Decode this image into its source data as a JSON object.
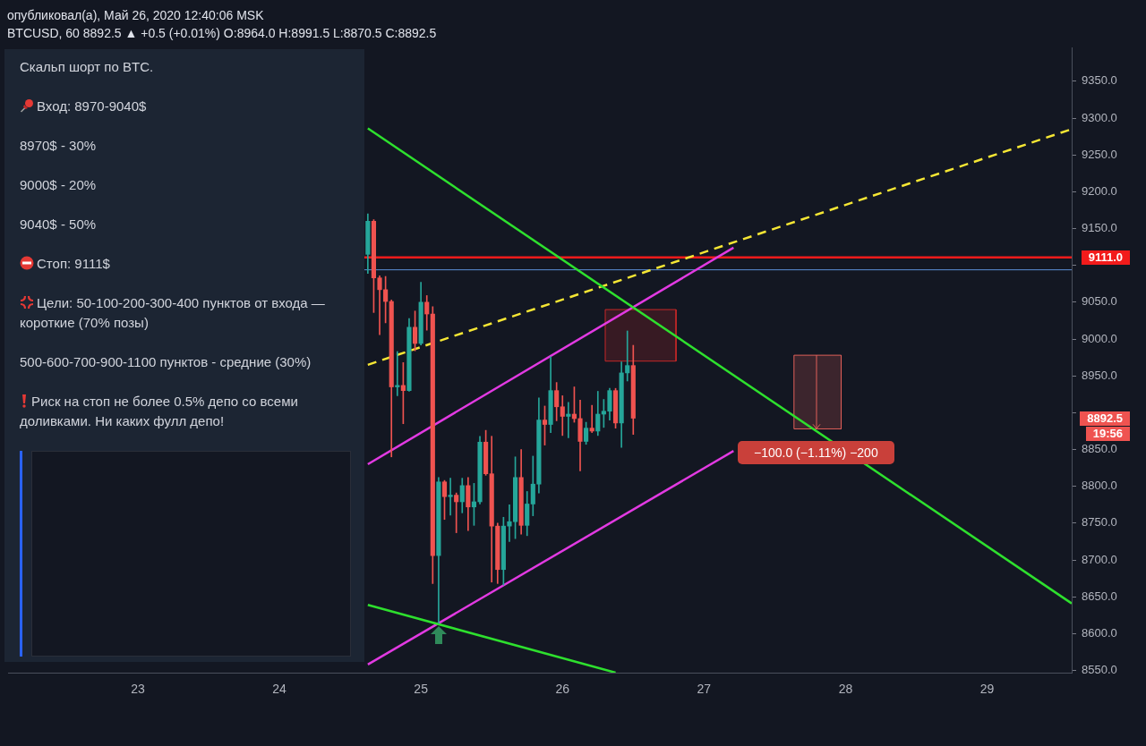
{
  "chart_data": [
    {
      "type": "candlestick",
      "title": "опубликовал(а), Май 26, 2020 12:40:06 MSK",
      "subtitle": "BTCUSD, 60 8892.5 ▲ +0.5 (+0.01%) O:8964.0 H:8991.5 L:8870.5 C:8892.5",
      "x": [
        "2020-05-24T15:00",
        "2020-05-24T16:00",
        "2020-05-24T17:00",
        "2020-05-24T18:00",
        "2020-05-24T19:00",
        "2020-05-24T20:00",
        "2020-05-24T21:00",
        "2020-05-24T22:00",
        "2020-05-24T23:00",
        "2020-05-25T00:00",
        "2020-05-25T01:00",
        "2020-05-25T02:00",
        "2020-05-25T03:00",
        "2020-05-25T04:00",
        "2020-05-25T05:00",
        "2020-05-25T06:00",
        "2020-05-25T07:00",
        "2020-05-25T08:00",
        "2020-05-25T09:00",
        "2020-05-25T10:00",
        "2020-05-25T11:00",
        "2020-05-25T12:00",
        "2020-05-25T13:00",
        "2020-05-25T14:00",
        "2020-05-25T15:00",
        "2020-05-25T16:00",
        "2020-05-25T17:00",
        "2020-05-25T18:00",
        "2020-05-25T19:00",
        "2020-05-25T20:00",
        "2020-05-25T21:00",
        "2020-05-25T22:00",
        "2020-05-25T23:00",
        "2020-05-26T00:00",
        "2020-05-26T01:00",
        "2020-05-26T02:00",
        "2020-05-26T03:00",
        "2020-05-26T04:00",
        "2020-05-26T05:00",
        "2020-05-26T06:00",
        "2020-05-26T07:00",
        "2020-05-26T08:00",
        "2020-05-26T09:00",
        "2020-05-26T10:00",
        "2020-05-26T11:00",
        "2020-05-26T12:00"
      ],
      "ohlc": [
        [
          9115,
          9170,
          9089,
          9160
        ],
        [
          9160,
          9162,
          9036,
          9083
        ],
        [
          9083,
          9086,
          9006,
          9067
        ],
        [
          9067,
          9085,
          9022,
          9051
        ],
        [
          9051,
          9053,
          8840,
          8935
        ],
        [
          8935,
          8983,
          8923,
          8937
        ],
        [
          8937,
          8968,
          8885,
          8930
        ],
        [
          8930,
          9028,
          8929,
          9016
        ],
        [
          9016,
          9038,
          8984,
          8994
        ],
        [
          8994,
          9077,
          8992,
          9050
        ],
        [
          9050,
          9059,
          9012,
          9034
        ],
        [
          9034,
          9044,
          8668,
          8706
        ],
        [
          8706,
          8812,
          8614,
          8806
        ],
        [
          8806,
          8808,
          8755,
          8786
        ],
        [
          8786,
          8811,
          8761,
          8788
        ],
        [
          8788,
          8791,
          8737,
          8779
        ],
        [
          8779,
          8811,
          8764,
          8801
        ],
        [
          8801,
          8812,
          8740,
          8772
        ],
        [
          8772,
          8804,
          8747,
          8779
        ],
        [
          8779,
          8868,
          8776,
          8860
        ],
        [
          8860,
          8876,
          8815,
          8817
        ],
        [
          8817,
          8868,
          8670,
          8746
        ],
        [
          8746,
          8750,
          8668,
          8687
        ],
        [
          8687,
          8758,
          8666,
          8746
        ],
        [
          8746,
          8775,
          8725,
          8752
        ],
        [
          8752,
          8840,
          8729,
          8812
        ],
        [
          8812,
          8850,
          8735,
          8747
        ],
        [
          8747,
          8793,
          8733,
          8776
        ],
        [
          8776,
          8841,
          8760,
          8803
        ],
        [
          8803,
          8920,
          8791,
          8890
        ],
        [
          8890,
          8909,
          8856,
          8884
        ],
        [
          8884,
          8976,
          8873,
          8930
        ],
        [
          8930,
          8941,
          8889,
          8908
        ],
        [
          8908,
          8923,
          8869,
          8895
        ],
        [
          8895,
          8914,
          8866,
          8898
        ],
        [
          8898,
          8935,
          8887,
          8892
        ],
        [
          8892,
          8917,
          8821,
          8861
        ],
        [
          8861,
          8887,
          8857,
          8879
        ],
        [
          8879,
          8910,
          8873,
          8875
        ],
        [
          8875,
          8929,
          8869,
          8898
        ],
        [
          8898,
          8918,
          8880,
          8902
        ],
        [
          8902,
          8933,
          8890,
          8930
        ],
        [
          8930,
          8933,
          8879,
          8886
        ],
        [
          8886,
          8969,
          8853,
          8954
        ],
        [
          8954,
          9011,
          8943,
          8964
        ],
        [
          8964,
          8991.5,
          8870.5,
          8892.5
        ]
      ],
      "colors": [
        "#26a69a",
        "#ef5350",
        "#ef5350",
        "#ef5350",
        "#ef5350",
        "#26a69a",
        "#ef5350",
        "#26a69a",
        "#ef5350",
        "#26a69a",
        "#ef5350",
        "#ef5350",
        "#26a69a",
        "#ef5350",
        "#26a69a",
        "#ef5350",
        "#26a69a",
        "#ef5350",
        "#26a69a",
        "#26a69a",
        "#ef5350",
        "#ef5350",
        "#ef5350",
        "#26a69a",
        "#26a69a",
        "#26a69a",
        "#ef5350",
        "#26a69a",
        "#26a69a",
        "#26a69a",
        "#ef5350",
        "#26a69a",
        "#ef5350",
        "#ef5350",
        "#26a69a",
        "#ef5350",
        "#ef5350",
        "#26a69a",
        "#ef5350",
        "#26a69a",
        "#26a69a",
        "#26a69a",
        "#ef5350",
        "#26a69a",
        "#26a69a",
        "#ef5350"
      ],
      "series": [
        {
          "type": "line",
          "color": "#2ee02e",
          "x": [
            "2020-05-24T15:00",
            "2020-05-29T14:20"
          ],
          "values": [
            9286,
            8641
          ]
        },
        {
          "type": "line",
          "color": "#2ee02e",
          "x": [
            "2020-05-24T15:00",
            "2020-05-26T09:00"
          ],
          "values": [
            8639,
            8547
          ]
        },
        {
          "type": "line",
          "color": "#e23ae2",
          "x": [
            "2020-05-24T15:00",
            "2020-05-27T05:00"
          ],
          "values": [
            8830,
            9124
          ]
        },
        {
          "type": "line",
          "color": "#e23ae2",
          "x": [
            "2020-05-24T15:00",
            "2020-05-27T05:00"
          ],
          "values": [
            8558,
            8848
          ]
        },
        {
          "type": "line",
          "color": "#f5e634",
          "line_style": "dashed",
          "x": [
            "2020-05-24T15:00",
            "2020-05-29T14:20"
          ],
          "values": [
            8965,
            9285
          ]
        },
        {
          "type": "area",
          "color": "#c62828",
          "x": [
            "2020-05-26T07:15",
            "2020-05-26T07:15",
            "2020-05-26T19:15",
            "2020-05-26T19:15",
            "2020-05-26T07:15"
          ],
          "values": [
            8970,
            9040,
            9040,
            8970,
            8970
          ]
        },
        {
          "type": "area",
          "color": "#e0605a",
          "x": [
            "2020-05-27T15:15",
            "2020-05-27T15:15",
            "2020-05-27T23:15",
            "2020-05-27T23:15",
            "2020-05-27T15:15"
          ],
          "values": [
            8878,
            8978,
            8978,
            8878,
            8878
          ]
        }
      ],
      "ref_lines": [
        {
          "axis": "y",
          "value": 9111,
          "label": "9111.0",
          "color": "#f21b1b"
        },
        {
          "axis": "y",
          "value": 9094,
          "color": "#5b8fd6"
        }
      ],
      "annotations": [
        "8892.5",
        "19:56",
        {
          "text": "−100.0 (−1.11%) −200",
          "x": "2020-05-27T19:00",
          "y": 8878
        }
      ],
      "marker": "none",
      "xlim": [
        "2020-05-22T02:00",
        "2020-05-29T14:20"
      ],
      "xticks": [
        {
          "value": "2020-05-23",
          "label": "23"
        },
        {
          "value": "2020-05-24",
          "label": "24"
        },
        {
          "value": "2020-05-25",
          "label": "25"
        },
        {
          "value": "2020-05-26",
          "label": "26"
        },
        {
          "value": "2020-05-27",
          "label": "27"
        },
        {
          "value": "2020-05-28",
          "label": "28"
        },
        {
          "value": "2020-05-29",
          "label": "29"
        }
      ],
      "ylim": [
        8547,
        9395
      ],
      "yticks": [
        {
          "value": 8550,
          "label": "8550.0"
        },
        {
          "value": 8600,
          "label": "8600.0"
        },
        {
          "value": 8650,
          "label": "8650.0"
        },
        {
          "value": 8700,
          "label": "8700.0"
        },
        {
          "value": 8750,
          "label": "8750.0"
        },
        {
          "value": 8800,
          "label": "8800.0"
        },
        {
          "value": 8850,
          "label": "8850.0"
        },
        {
          "value": 8900,
          "label": null
        },
        {
          "value": 8950,
          "label": "8950.0"
        },
        {
          "value": 9000,
          "label": "9000.0"
        },
        {
          "value": 9050,
          "label": "9050.0"
        },
        {
          "value": 9100,
          "label": null
        },
        {
          "value": 9150,
          "label": "9150.0"
        },
        {
          "value": 9200,
          "label": "9200.0"
        },
        {
          "value": 9250,
          "label": "9250.0"
        },
        {
          "value": 9300,
          "label": "9300.0"
        },
        {
          "value": 9350,
          "label": "9350.0"
        }
      ]
    },
    {
      "type": "other",
      "annotations": [
        "Скальп шорт по BTC.",
        "Вход: 8970-9040$",
        "8970$ - 30%",
        "9000$ - 20%",
        "9040$ - 50%",
        "Стоп: 9111$",
        "Цели: 50-100-200-300-400 пунктов от входа — короткие (70% позы)",
        "500-600-700-900-1100 пунктов - средние (30%)",
        "Риск на стоп не более 0.5% депо со всеми доливками. Ни каких фулл депо!"
      ]
    }
  ]
}
